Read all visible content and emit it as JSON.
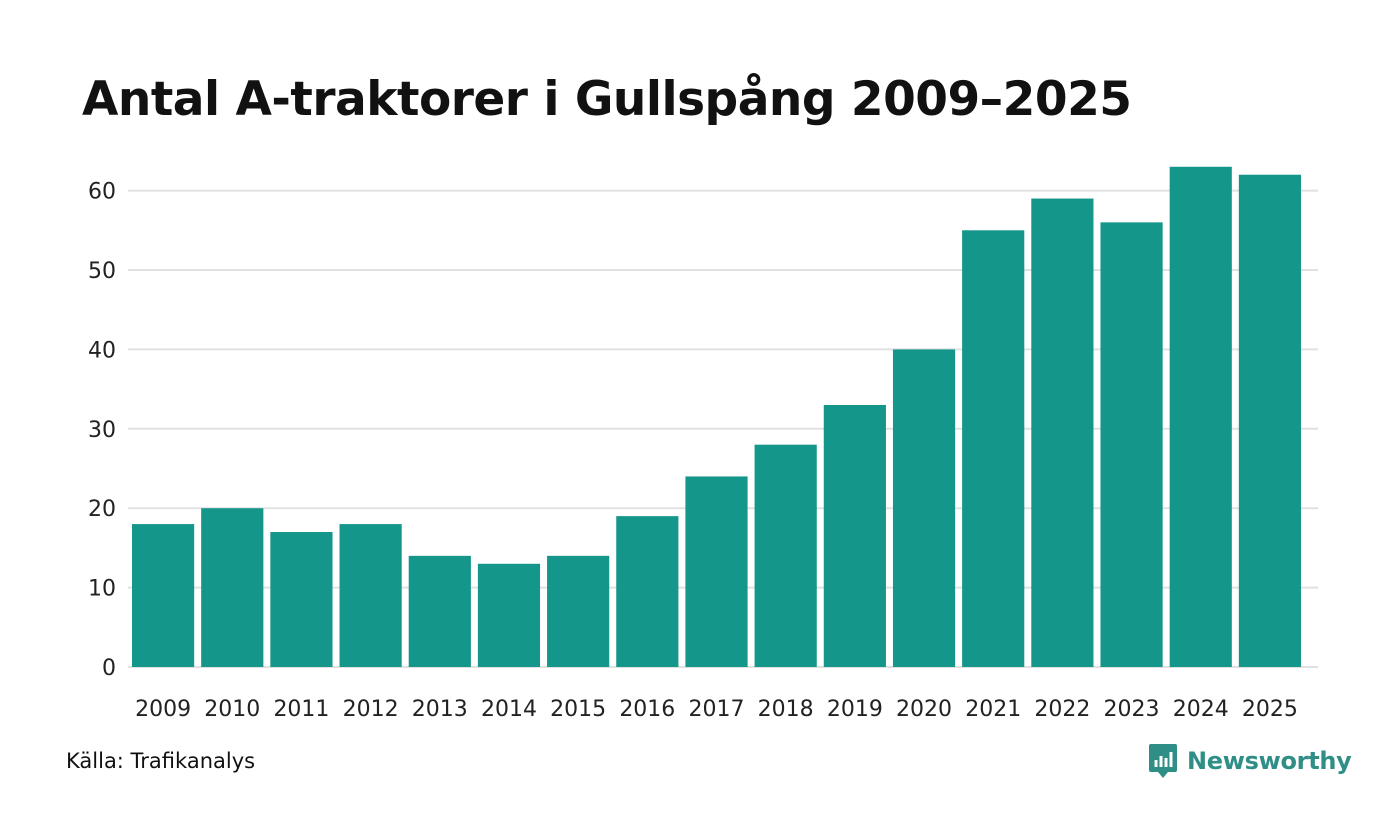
{
  "chart_data": {
    "type": "bar",
    "title": "Antal A-traktorer i Gullspång 2009–2025",
    "xlabel": "",
    "ylabel": "",
    "categories": [
      "2009",
      "2010",
      "2011",
      "2012",
      "2013",
      "2014",
      "2015",
      "2016",
      "2017",
      "2018",
      "2019",
      "2020",
      "2021",
      "2022",
      "2023",
      "2024",
      "2025"
    ],
    "values": [
      18,
      20,
      17,
      18,
      14,
      13,
      14,
      19,
      24,
      28,
      33,
      40,
      55,
      59,
      56,
      63,
      62
    ],
    "ylim": [
      0,
      63
    ],
    "yticks": [
      0,
      10,
      20,
      30,
      40,
      50,
      60
    ],
    "grid": true,
    "legend": "none",
    "bar_color": "#14968a",
    "grid_color": "#e1e1e1"
  },
  "footer": {
    "source": "Källa: Trafikanalys",
    "brand": "Newsworthy",
    "brand_color": "#2f8f86"
  }
}
